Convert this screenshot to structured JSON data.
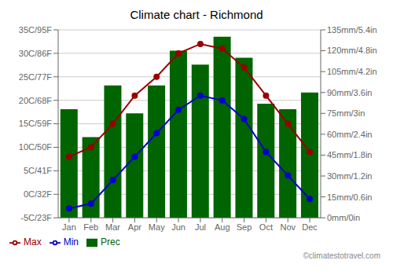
{
  "chart_data": {
    "type": "bar",
    "title": "Climate chart - Richmond",
    "categories": [
      "Jan",
      "Feb",
      "Mar",
      "Apr",
      "May",
      "Jun",
      "Jul",
      "Aug",
      "Sep",
      "Oct",
      "Nov",
      "Dec"
    ],
    "series": [
      {
        "name": "Prec",
        "type": "bar",
        "axis": "y2",
        "color": "#006400",
        "values": [
          78,
          58,
          95,
          75,
          95,
          120,
          110,
          130,
          115,
          82,
          78,
          90
        ]
      },
      {
        "name": "Min",
        "type": "line",
        "marker": "circle",
        "color": "#0000cc",
        "values": [
          -3,
          -2,
          3,
          8,
          13,
          18,
          21,
          20,
          16,
          9,
          4,
          -1
        ]
      },
      {
        "name": "Max",
        "type": "line",
        "marker": "circle",
        "color": "#990000",
        "values": [
          8,
          10,
          15,
          21,
          25,
          30,
          32,
          31,
          27,
          21,
          15,
          9
        ]
      }
    ],
    "ylim": [
      -5,
      35
    ],
    "yticks": [
      {
        "value": -5,
        "label": "-5C/23F"
      },
      {
        "value": 0,
        "label": "0C/32F"
      },
      {
        "value": 5,
        "label": "5C/41F"
      },
      {
        "value": 10,
        "label": "10C/50F"
      },
      {
        "value": 15,
        "label": "15C/59F"
      },
      {
        "value": 20,
        "label": "20C/68F"
      },
      {
        "value": 25,
        "label": "25C/77F"
      },
      {
        "value": 30,
        "label": "30C/86F"
      },
      {
        "value": 35,
        "label": "35C/95F"
      }
    ],
    "y2lim": [
      0,
      135
    ],
    "y2ticks": [
      {
        "value": 0,
        "label": "0mm/0in"
      },
      {
        "value": 15,
        "label": "15mm/0.6in"
      },
      {
        "value": 30,
        "label": "30mm/1.2in"
      },
      {
        "value": 45,
        "label": "45mm/1.8in"
      },
      {
        "value": 60,
        "label": "60mm/2.4in"
      },
      {
        "value": 75,
        "label": "75mm/3in"
      },
      {
        "value": 90,
        "label": "90mm/3.6in"
      },
      {
        "value": 105,
        "label": "105mm/4.2in"
      },
      {
        "value": 120,
        "label": "120mm/4.8in"
      },
      {
        "value": 135,
        "label": "135mm/5.4in"
      }
    ],
    "grid": true,
    "legend": "lower left",
    "annotations": [
      "©climatestotravel.com"
    ]
  }
}
